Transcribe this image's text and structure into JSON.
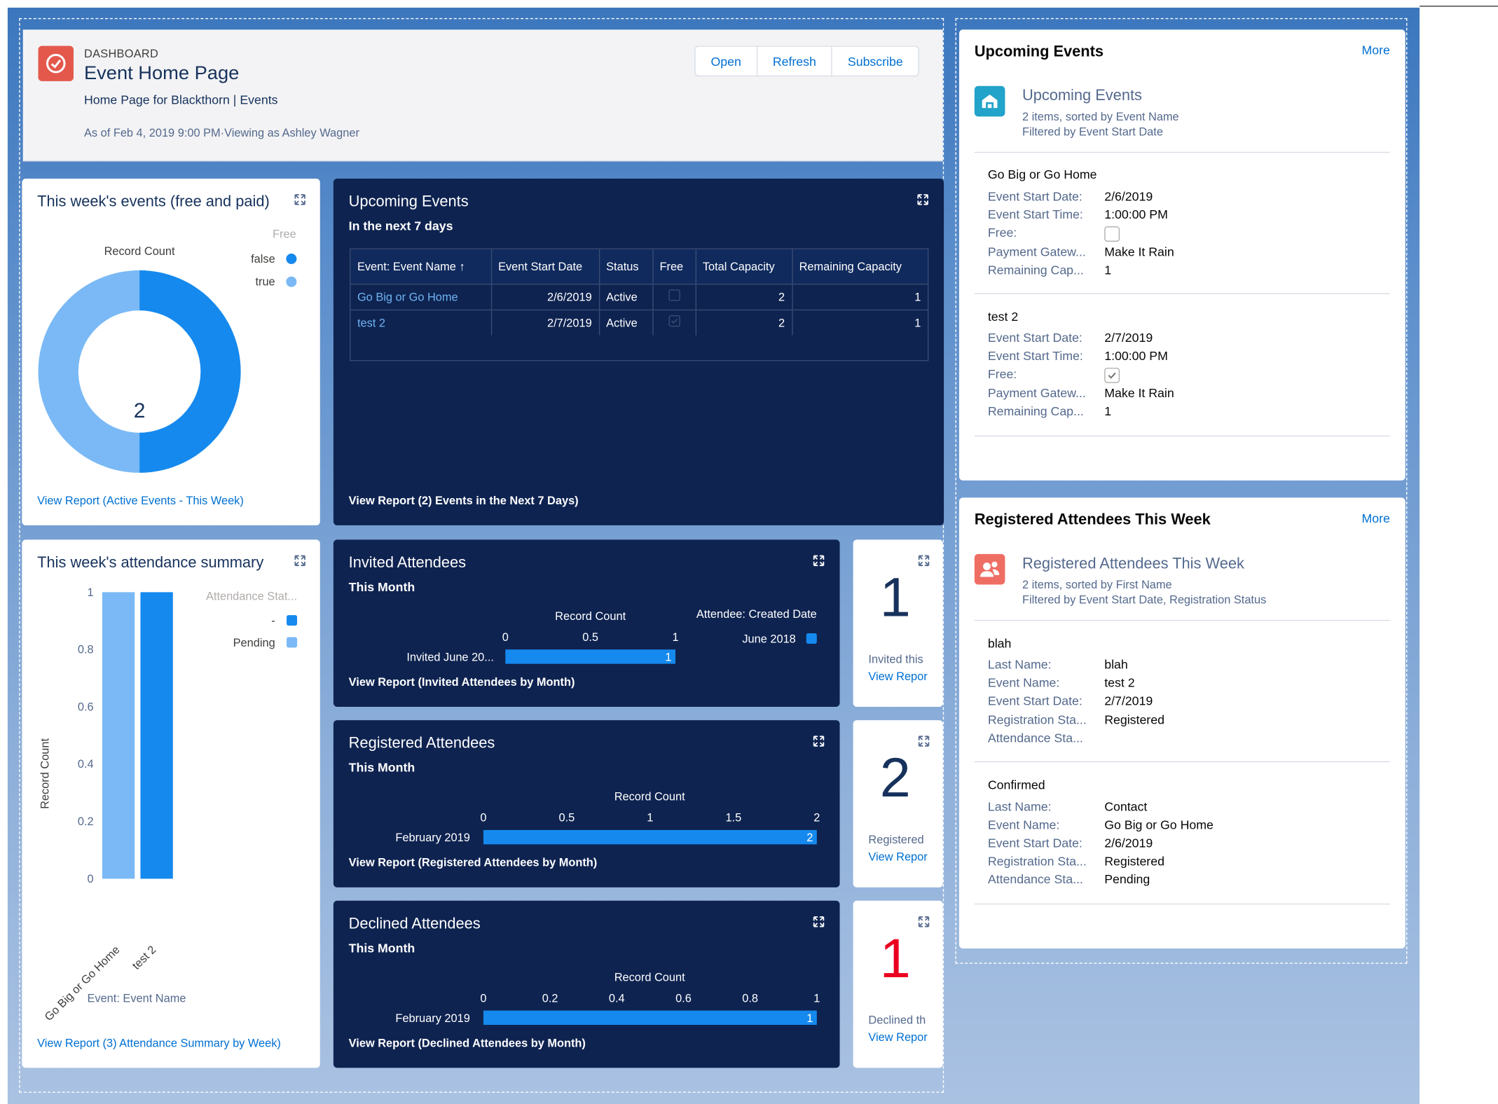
{
  "header": {
    "eyebrow": "DASHBOARD",
    "title": "Event Home Page",
    "subtitle": "Home Page for Blackthorn | Events",
    "as_of": "As of Feb 4, 2019 9:00 PM·Viewing as Ashley Wagner",
    "buttons": {
      "open": "Open",
      "refresh": "Refresh",
      "subscribe": "Subscribe"
    }
  },
  "donut": {
    "title": "This week's events (free and paid)",
    "center_value": "2",
    "link": "View Report (Active Events - This Week)"
  },
  "events_table": {
    "title": "Upcoming Events",
    "subtitle": "In the next 7 days",
    "columns": [
      "Event: Event Name ↑",
      "Event Start Date",
      "Status",
      "Free",
      "Total Capacity",
      "Remaining Capacity"
    ],
    "rows": [
      {
        "name": "Go Big or Go Home",
        "date": "2/6/2019",
        "status": "Active",
        "free": false,
        "total": "2",
        "remaining": "1"
      },
      {
        "name": "test 2",
        "date": "2/7/2019",
        "status": "Active",
        "free": true,
        "total": "2",
        "remaining": "1"
      }
    ],
    "link": "View Report (2) Events in the Next 7 Days)"
  },
  "attendance": {
    "title": "This week's attendance summary",
    "link": "View Report (3) Attendance Summary by Week)"
  },
  "invited": {
    "title": "Invited Attendees",
    "subtitle": "This Month",
    "link": "View Report (Invited Attendees by Month)"
  },
  "registered": {
    "title": "Registered Attendees",
    "subtitle": "This Month",
    "link": "View Report (Registered Attendees by Month)"
  },
  "declined": {
    "title": "Declined Attendees",
    "subtitle": "This Month",
    "link": "View Report (Declined Attendees by Month)"
  },
  "metrics": [
    {
      "value": "1",
      "label": "Invited this",
      "link": "View Repor",
      "color": "#16325c"
    },
    {
      "value": "2",
      "label": "Registered",
      "link": "View Repor",
      "color": "#16325c"
    },
    {
      "value": "1",
      "label": "Declined th",
      "link": "View Repor",
      "color": "#ea001e"
    }
  ],
  "upcoming_list": {
    "title": "Upcoming Events",
    "more": "More",
    "list_name": "Upcoming Events",
    "meta1": "2 items, sorted by Event Name",
    "meta2": "Filtered by Event Start Date",
    "records": [
      {
        "title": "Go Big or Go Home",
        "fields": [
          [
            "Event Start Date:",
            "2/6/2019"
          ],
          [
            "Event Start Time:",
            "1:00:00 PM"
          ],
          [
            "Free:",
            ""
          ],
          [
            "Payment Gatew...",
            "Make It Rain"
          ],
          [
            "Remaining Cap...",
            "1"
          ]
        ],
        "free": false
      },
      {
        "title": "test 2",
        "fields": [
          [
            "Event Start Date:",
            "2/7/2019"
          ],
          [
            "Event Start Time:",
            "1:00:00 PM"
          ],
          [
            "Free:",
            ""
          ],
          [
            "Payment Gatew...",
            "Make It Rain"
          ],
          [
            "Remaining Cap...",
            "1"
          ]
        ],
        "free": true
      }
    ]
  },
  "registered_list": {
    "title": "Registered Attendees This Week",
    "more": "More",
    "list_name": "Registered Attendees This Week",
    "meta1": "2 items, sorted by First Name",
    "meta2": "Filtered by Event Start Date, Registration Status",
    "records": [
      {
        "title": "blah",
        "fields": [
          [
            "Last Name:",
            "blah"
          ],
          [
            "Event Name:",
            "test 2"
          ],
          [
            "Event Start Date:",
            "2/7/2019"
          ],
          [
            "Registration Sta...",
            "Registered"
          ],
          [
            "Attendance Sta...",
            ""
          ]
        ]
      },
      {
        "title": "Confirmed",
        "fields": [
          [
            "Last Name:",
            "Contact"
          ],
          [
            "Event Name:",
            "Go Big or Go Home"
          ],
          [
            "Event Start Date:",
            "2/6/2019"
          ],
          [
            "Registration Sta...",
            "Registered"
          ],
          [
            "Attendance Sta...",
            "Pending"
          ]
        ]
      }
    ]
  },
  "colors": {
    "dark_blue": "#1589ee",
    "light_blue": "#7ab9f5",
    "navy": "#0e2350",
    "red": "#ea001e"
  },
  "chart_data": [
    {
      "type": "pie",
      "title": "This week's events (free and paid)",
      "value_label": "Record Count",
      "legend_title": "Free",
      "legend_position": "top-right",
      "categories": [
        "false",
        "true"
      ],
      "values": [
        1,
        1
      ],
      "total": "2"
    },
    {
      "type": "bar",
      "title": "This week's attendance summary",
      "categories": [
        "Go Big or Go Home",
        "test 2"
      ],
      "series": [
        {
          "name": "Pending",
          "values": [
            1,
            0
          ]
        },
        {
          "name": "-",
          "values": [
            0,
            1
          ]
        }
      ],
      "ylabel": "Record Count",
      "xlabel": "Event: Event Name",
      "ylim": [
        0,
        1
      ],
      "yticks": [
        "0",
        "0.2",
        "0.4",
        "0.6",
        "0.8",
        "1"
      ],
      "legend_title": "Attendance Stat...",
      "legend_position": "top-right"
    },
    {
      "type": "bar",
      "title": "Invited Attendees",
      "orientation": "horizontal",
      "categories": [
        "Invited    June 20..."
      ],
      "values": [
        1
      ],
      "xlabel": "Record Count",
      "xlim": [
        0,
        1
      ],
      "xticks": [
        "0",
        "0.5",
        "1"
      ],
      "legend_title": "Attendee: Created Date",
      "series": [
        {
          "name": "June 2018",
          "values": [
            1
          ]
        }
      ]
    },
    {
      "type": "bar",
      "title": "Registered Attendees",
      "orientation": "horizontal",
      "categories": [
        "February 2019"
      ],
      "values": [
        2
      ],
      "xlabel": "Record Count",
      "xlim": [
        0,
        2
      ],
      "xticks": [
        "0",
        "0.5",
        "1",
        "1.5",
        "2"
      ]
    },
    {
      "type": "bar",
      "title": "Declined Attendees",
      "orientation": "horizontal",
      "categories": [
        "February 2019"
      ],
      "values": [
        1
      ],
      "xlabel": "Record Count",
      "xlim": [
        0,
        1
      ],
      "xticks": [
        "0",
        "0.2",
        "0.4",
        "0.6",
        "0.8",
        "1"
      ]
    }
  ]
}
